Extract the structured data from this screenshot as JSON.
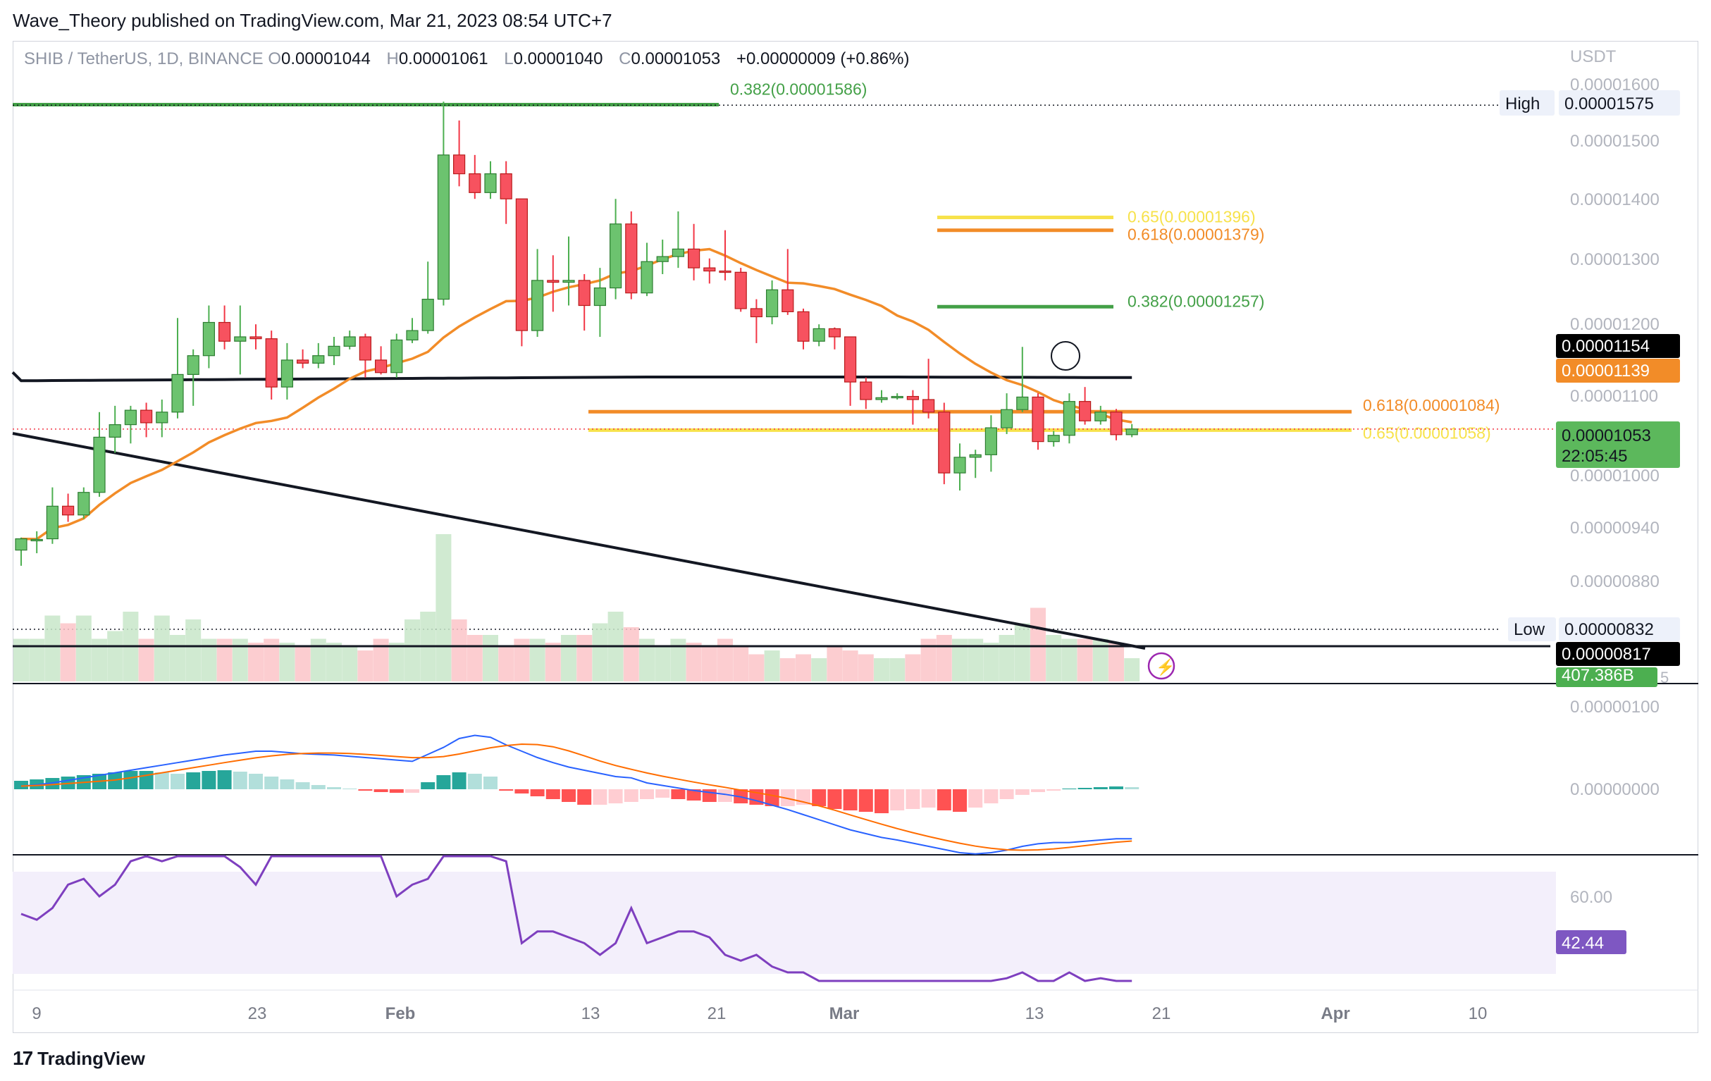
{
  "header": {
    "byline": "Wave_Theory published on TradingView.com, Mar 21, 2023 08:54 UTC+7"
  },
  "legend": {
    "symbol": "SHIB / TetherUS, 1D, BINANCE",
    "o_label": "O",
    "o_value": "0.00001044",
    "h_label": "H",
    "h_value": "0.00001061",
    "l_label": "L",
    "l_value": "0.00001040",
    "c_label": "C",
    "c_value": "0.00001053",
    "change": "+0.00000009 (+0.86%)"
  },
  "footer": {
    "brand": "TradingView",
    "logo_glyph": "17"
  },
  "colors": {
    "up": "#4caf50",
    "up_body": "#6cc36f",
    "down": "#f23645",
    "down_body": "#f7525f",
    "ema50": "#f28c28",
    "ma200": "#131722",
    "fib_green": "#43a047",
    "fib_orange": "#f28c28",
    "fib_yellow": "#f7e24b",
    "macd": "#2962ff",
    "signal": "#ff6d00",
    "rsi": "#7e3fbf",
    "rsi_band": "#f3effb"
  },
  "chart_data": {
    "type": "candlestick",
    "price_axis_unit": "USDT",
    "price_ticks": [
      "0.00001600",
      "0.00001500",
      "0.00001400",
      "0.00001300",
      "0.00001200",
      "0.00001100",
      "0.00001000",
      "0.00000940",
      "0.00000880"
    ],
    "x_ticks": [
      "9",
      "23",
      "Feb",
      "13",
      "21",
      "Mar",
      "13",
      "21",
      "Apr",
      "10"
    ],
    "price_labels": [
      {
        "text": "High",
        "value": "0.00001575"
      },
      {
        "text": "",
        "value": "0.00001154"
      },
      {
        "text": "",
        "value": "0.00001139"
      },
      {
        "text": "",
        "value": "0.00001053",
        "extra": "22:05:45"
      },
      {
        "text": "Low",
        "value": "0.00000832"
      },
      {
        "text": "",
        "value": "0.00000817"
      }
    ],
    "volume_label": "407.386B",
    "volume_suffix": "5",
    "fib_labels": [
      {
        "text": "0.382(0.00001586)",
        "color": "green"
      },
      {
        "text": "0.65(0.00001396)",
        "color": "yellow"
      },
      {
        "text": "0.618(0.00001379)",
        "color": "orange"
      },
      {
        "text": "0.382(0.00001257)",
        "color": "green"
      },
      {
        "text": "0.618(0.00001084)",
        "color": "orange"
      },
      {
        "text": "0.65(0.00001058)",
        "color": "yellow"
      }
    ],
    "macd_ticks": [
      "0.00000100",
      "0.00000000"
    ],
    "rsi_ticks": [
      "60.00"
    ],
    "rsi_value": "42.44",
    "candles": [
      {
        "o": 8.6e-06,
        "h": 8.8e-06,
        "l": 8.35e-06,
        "c": 8.78e-06
      },
      {
        "o": 8.76e-06,
        "h": 8.9e-06,
        "l": 8.55e-06,
        "c": 8.77e-06
      },
      {
        "o": 8.78e-06,
        "h": 9.6e-06,
        "l": 8.7e-06,
        "c": 9.3e-06
      },
      {
        "o": 9.3e-06,
        "h": 9.5e-06,
        "l": 9.05e-06,
        "c": 9.16e-06
      },
      {
        "o": 9.16e-06,
        "h": 9.6e-06,
        "l": 9.1e-06,
        "c": 9.52e-06
      },
      {
        "o": 9.52e-06,
        "h": 1.08e-05,
        "l": 9.45e-06,
        "c": 1.04e-05
      },
      {
        "o": 1.04e-05,
        "h": 1.09e-05,
        "l": 1.015e-05,
        "c": 1.06e-05
      },
      {
        "o": 1.06e-05,
        "h": 1.09e-05,
        "l": 1.03e-05,
        "c": 1.083e-05
      },
      {
        "o": 1.083e-05,
        "h": 1.095e-05,
        "l": 1.04e-05,
        "c": 1.063e-05
      },
      {
        "o": 1.063e-05,
        "h": 1.1e-05,
        "l": 1.04e-05,
        "c": 1.08e-05
      },
      {
        "o": 1.08e-05,
        "h": 1.23e-05,
        "l": 1.07e-05,
        "c": 1.14e-05
      },
      {
        "o": 1.14e-05,
        "h": 1.18e-05,
        "l": 1.09e-05,
        "c": 1.17e-05
      },
      {
        "o": 1.17e-05,
        "h": 1.25e-05,
        "l": 1.15e-05,
        "c": 1.223e-05
      },
      {
        "o": 1.223e-05,
        "h": 1.25e-05,
        "l": 1.18e-05,
        "c": 1.193e-05
      },
      {
        "o": 1.193e-05,
        "h": 1.25e-05,
        "l": 1.14e-05,
        "c": 1.2e-05
      },
      {
        "o": 1.2e-05,
        "h": 1.22e-05,
        "l": 1.18e-05,
        "c": 1.197e-05
      },
      {
        "o": 1.197e-05,
        "h": 1.21e-05,
        "l": 1.1e-05,
        "c": 1.12e-05
      },
      {
        "o": 1.12e-05,
        "h": 1.19e-05,
        "l": 1.1e-05,
        "c": 1.163e-05
      },
      {
        "o": 1.163e-05,
        "h": 1.18e-05,
        "l": 1.15e-05,
        "c": 1.158e-05
      },
      {
        "o": 1.158e-05,
        "h": 1.19e-05,
        "l": 1.15e-05,
        "c": 1.17e-05
      },
      {
        "o": 1.17e-05,
        "h": 1.2e-05,
        "l": 1.155e-05,
        "c": 1.185e-05
      },
      {
        "o": 1.185e-05,
        "h": 1.21e-05,
        "l": 1.18e-05,
        "c": 1.2e-05
      },
      {
        "o": 1.2e-05,
        "h": 1.205e-05,
        "l": 1.135e-05,
        "c": 1.163e-05
      },
      {
        "o": 1.163e-05,
        "h": 1.185e-05,
        "l": 1.14e-05,
        "c": 1.143e-05
      },
      {
        "o": 1.143e-05,
        "h": 1.205e-05,
        "l": 1.135e-05,
        "c": 1.195e-05
      },
      {
        "o": 1.195e-05,
        "h": 1.23e-05,
        "l": 1.19e-05,
        "c": 1.21e-05
      },
      {
        "o": 1.21e-05,
        "h": 1.32e-05,
        "l": 1.205e-05,
        "c": 1.26e-05
      },
      {
        "o": 1.26e-05,
        "h": 1.575e-05,
        "l": 1.25e-05,
        "c": 1.49e-05
      },
      {
        "o": 1.49e-05,
        "h": 1.545e-05,
        "l": 1.44e-05,
        "c": 1.46e-05
      },
      {
        "o": 1.46e-05,
        "h": 1.49e-05,
        "l": 1.42e-05,
        "c": 1.43e-05
      },
      {
        "o": 1.43e-05,
        "h": 1.48e-05,
        "l": 1.42e-05,
        "c": 1.46e-05
      },
      {
        "o": 1.46e-05,
        "h": 1.48e-05,
        "l": 1.38e-05,
        "c": 1.42e-05
      },
      {
        "o": 1.42e-05,
        "h": 1.42e-05,
        "l": 1.185e-05,
        "c": 1.21e-05
      },
      {
        "o": 1.21e-05,
        "h": 1.34e-05,
        "l": 1.2e-05,
        "c": 1.29e-05
      },
      {
        "o": 1.29e-05,
        "h": 1.33e-05,
        "l": 1.24e-05,
        "c": 1.287e-05
      },
      {
        "o": 1.287e-05,
        "h": 1.36e-05,
        "l": 1.25e-05,
        "c": 1.29e-05
      },
      {
        "o": 1.29e-05,
        "h": 1.3e-05,
        "l": 1.21e-05,
        "c": 1.25e-05
      },
      {
        "o": 1.25e-05,
        "h": 1.31e-05,
        "l": 1.2e-05,
        "c": 1.278e-05
      },
      {
        "o": 1.278e-05,
        "h": 1.42e-05,
        "l": 1.26e-05,
        "c": 1.38e-05
      },
      {
        "o": 1.38e-05,
        "h": 1.4e-05,
        "l": 1.26e-05,
        "c": 1.27e-05
      },
      {
        "o": 1.27e-05,
        "h": 1.35e-05,
        "l": 1.265e-05,
        "c": 1.32e-05
      },
      {
        "o": 1.32e-05,
        "h": 1.355e-05,
        "l": 1.3e-05,
        "c": 1.328e-05
      },
      {
        "o": 1.328e-05,
        "h": 1.4e-05,
        "l": 1.31e-05,
        "c": 1.34e-05
      },
      {
        "o": 1.34e-05,
        "h": 1.38e-05,
        "l": 1.29e-05,
        "c": 1.31e-05
      },
      {
        "o": 1.31e-05,
        "h": 1.325e-05,
        "l": 1.285e-05,
        "c": 1.305e-05
      },
      {
        "o": 1.305e-05,
        "h": 1.37e-05,
        "l": 1.29e-05,
        "c": 1.303e-05
      },
      {
        "o": 1.303e-05,
        "h": 1.31e-05,
        "l": 1.24e-05,
        "c": 1.245e-05
      },
      {
        "o": 1.245e-05,
        "h": 1.26e-05,
        "l": 1.19e-05,
        "c": 1.232e-05
      },
      {
        "o": 1.232e-05,
        "h": 1.29e-05,
        "l": 1.22e-05,
        "c": 1.275e-05
      },
      {
        "o": 1.275e-05,
        "h": 1.34e-05,
        "l": 1.235e-05,
        "c": 1.24e-05
      },
      {
        "o": 1.24e-05,
        "h": 1.245e-05,
        "l": 1.18e-05,
        "c": 1.193e-05
      },
      {
        "o": 1.193e-05,
        "h": 1.22e-05,
        "l": 1.185e-05,
        "c": 1.213e-05
      },
      {
        "o": 1.213e-05,
        "h": 1.215e-05,
        "l": 1.18e-05,
        "c": 1.2e-05
      },
      {
        "o": 1.2e-05,
        "h": 1.2e-05,
        "l": 1.09e-05,
        "c": 1.128e-05
      },
      {
        "o": 1.128e-05,
        "h": 1.135e-05,
        "l": 1.085e-05,
        "c": 1.1e-05
      },
      {
        "o": 1.1e-05,
        "h": 1.115e-05,
        "l": 1.095e-05,
        "c": 1.103e-05
      },
      {
        "o": 1.103e-05,
        "h": 1.11e-05,
        "l": 1.1e-05,
        "c": 1.105e-05
      },
      {
        "o": 1.105e-05,
        "h": 1.115e-05,
        "l": 1.06e-05,
        "c": 1.1e-05
      },
      {
        "o": 1.1e-05,
        "h": 1.165e-05,
        "l": 1.07e-05,
        "c": 1.08e-05
      },
      {
        "o": 1.08e-05,
        "h": 1.095e-05,
        "l": 9.65e-06,
        "c": 9.83e-06
      },
      {
        "o": 9.83e-06,
        "h": 1.03e-05,
        "l": 9.55e-06,
        "c": 1.008e-05
      },
      {
        "o": 1.008e-05,
        "h": 1.02e-05,
        "l": 9.75e-06,
        "c": 1.012e-05
      },
      {
        "o": 1.012e-05,
        "h": 1.075e-05,
        "l": 9.85e-06,
        "c": 1.055e-05
      },
      {
        "o": 1.055e-05,
        "h": 1.11e-05,
        "l": 1.045e-05,
        "c": 1.084e-05
      },
      {
        "o": 1.084e-05,
        "h": 1.184e-05,
        "l": 1.08e-05,
        "c": 1.104e-05
      },
      {
        "o": 1.104e-05,
        "h": 1.11e-05,
        "l": 1.02e-05,
        "c": 1.033e-05
      },
      {
        "o": 1.033e-05,
        "h": 1.05e-05,
        "l": 1.025e-05,
        "c": 1.043e-05
      },
      {
        "o": 1.043e-05,
        "h": 1.11e-05,
        "l": 1.03e-05,
        "c": 1.097e-05
      },
      {
        "o": 1.097e-05,
        "h": 1.12e-05,
        "l": 1.06e-05,
        "c": 1.066e-05
      },
      {
        "o": 1.066e-05,
        "h": 1.09e-05,
        "l": 1.06e-05,
        "c": 1.08e-05
      },
      {
        "o": 1.08e-05,
        "h": 1.085e-05,
        "l": 1.035e-05,
        "c": 1.044e-05
      },
      {
        "o": 1.044e-05,
        "h": 1.061e-05,
        "l": 1.04e-05,
        "c": 1.053e-05
      }
    ],
    "volume": [
      0.55,
      0.55,
      0.85,
      0.75,
      0.85,
      0.55,
      0.65,
      0.9,
      0.55,
      0.85,
      0.6,
      0.8,
      0.55,
      0.55,
      0.55,
      0.5,
      0.55,
      0.5,
      0.45,
      0.55,
      0.5,
      0.45,
      0.4,
      0.55,
      0.5,
      0.8,
      0.9,
      1.9,
      0.8,
      0.6,
      0.6,
      0.45,
      0.55,
      0.55,
      0.5,
      0.6,
      0.6,
      0.75,
      0.9,
      0.7,
      0.55,
      0.45,
      0.55,
      0.5,
      0.45,
      0.55,
      0.45,
      0.35,
      0.4,
      0.3,
      0.35,
      0.3,
      0.45,
      0.4,
      0.35,
      0.3,
      0.3,
      0.35,
      0.55,
      0.6,
      0.55,
      0.55,
      0.5,
      0.6,
      0.75,
      0.95,
      0.6,
      0.55,
      0.55,
      0.55,
      0.5,
      0.3
    ],
    "macd_hist": [
      0.12,
      0.14,
      0.16,
      0.18,
      0.2,
      0.22,
      0.24,
      0.26,
      0.26,
      0.24,
      0.22,
      0.24,
      0.26,
      0.27,
      0.25,
      0.22,
      0.18,
      0.14,
      0.1,
      0.06,
      0.03,
      0.01,
      -0.02,
      -0.04,
      -0.05,
      -0.05,
      0.1,
      0.2,
      0.24,
      0.22,
      0.18,
      -0.02,
      -0.06,
      -0.1,
      -0.14,
      -0.18,
      -0.22,
      -0.22,
      -0.2,
      -0.18,
      -0.14,
      -0.12,
      -0.14,
      -0.16,
      -0.18,
      -0.18,
      -0.2,
      -0.22,
      -0.24,
      -0.24,
      -0.22,
      -0.24,
      -0.28,
      -0.3,
      -0.32,
      -0.34,
      -0.3,
      -0.28,
      -0.26,
      -0.3,
      -0.32,
      -0.26,
      -0.2,
      -0.14,
      -0.08,
      -0.04,
      -0.02,
      0.01,
      0.02,
      0.03,
      0.04,
      0.03
    ],
    "rsi": [
      57,
      56,
      58,
      62,
      63,
      60,
      62,
      66,
      72,
      66,
      67,
      68,
      68,
      67,
      65,
      62,
      71,
      68,
      67,
      67,
      68,
      69,
      69,
      67,
      60,
      62,
      63,
      70,
      72,
      70,
      68,
      66,
      52,
      54,
      54,
      53,
      52,
      50,
      52,
      58,
      52,
      53,
      54,
      54,
      53,
      50,
      49,
      50,
      48,
      47,
      47,
      44,
      43,
      42,
      42,
      42,
      41,
      43,
      38,
      37,
      38,
      40,
      43,
      46,
      47,
      43,
      44,
      47,
      45,
      46,
      43,
      42
    ]
  }
}
